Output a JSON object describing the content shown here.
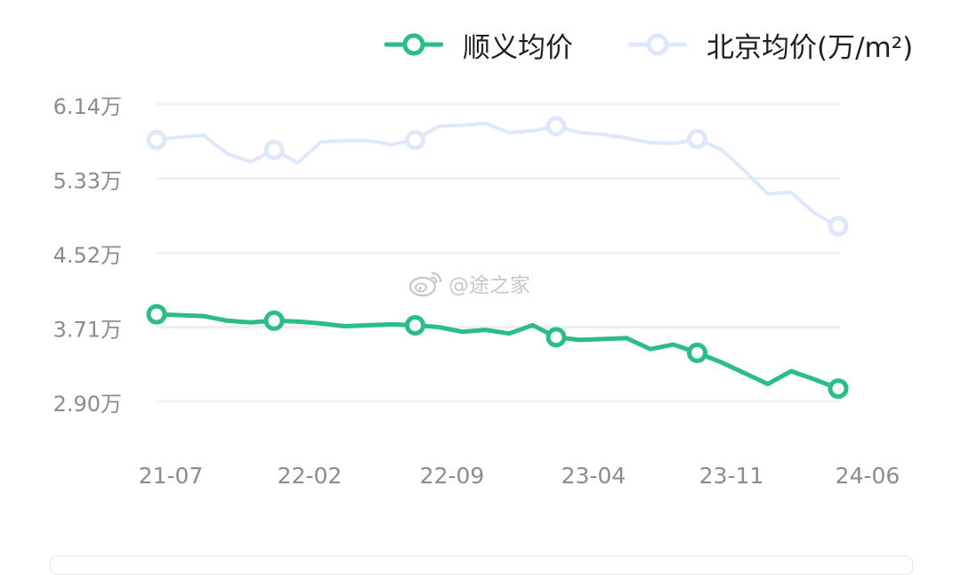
{
  "colors": {
    "shunyi": "#2bbe84",
    "beijing": "#dde8fb",
    "grid": "#f0f0f0",
    "tick_text": "#8c8c8c"
  },
  "watermark": {
    "text": "@途之家",
    "icon": "weibo-icon"
  },
  "chart_data": {
    "type": "line",
    "unit_suffix": "万",
    "legend_position": "top-right",
    "grid": true,
    "ylim": [
      2.9,
      6.14
    ],
    "y_ticks": [
      "6.14万",
      "5.33万",
      "4.52万",
      "3.71万",
      "2.90万"
    ],
    "x_ticks": [
      "21-07",
      "22-02",
      "22-09",
      "23-04",
      "23-11",
      "24-06"
    ],
    "series": [
      {
        "name": "顺义均价",
        "values": [
          3.85,
          3.84,
          3.83,
          3.78,
          3.76,
          3.78,
          3.77,
          3.75,
          3.72,
          3.73,
          3.74,
          3.73,
          3.71,
          3.66,
          3.68,
          3.64,
          3.73,
          3.6,
          3.57,
          3.58,
          3.59,
          3.47,
          3.52,
          3.43,
          3.33,
          3.21,
          3.09,
          3.23,
          3.14,
          3.04
        ],
        "marker_indices": [
          0,
          5,
          11,
          17,
          23,
          29
        ]
      },
      {
        "name": "北京均价(万/m²)",
        "values": [
          5.75,
          5.78,
          5.8,
          5.6,
          5.51,
          5.64,
          5.5,
          5.73,
          5.74,
          5.74,
          5.7,
          5.75,
          5.9,
          5.91,
          5.93,
          5.83,
          5.85,
          5.9,
          5.83,
          5.81,
          5.77,
          5.72,
          5.71,
          5.76,
          5.65,
          5.42,
          5.16,
          5.18,
          4.95,
          4.81
        ],
        "marker_indices": [
          0,
          5,
          11,
          17,
          23,
          29
        ]
      }
    ]
  }
}
